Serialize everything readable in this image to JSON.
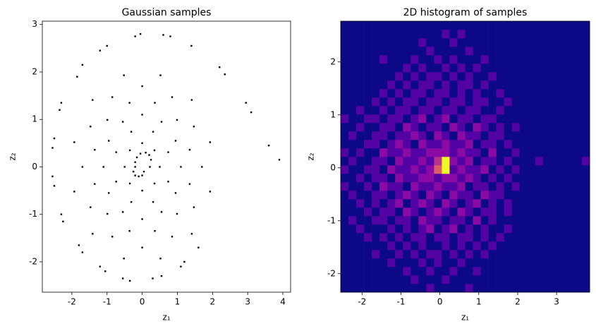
{
  "chart_data": [
    {
      "type": "scatter",
      "title": "Gaussian samples",
      "xlabel": "z₁",
      "ylabel": "z₂",
      "color": "#000000",
      "xlim": [
        -2.84,
        4.22
      ],
      "ylim": [
        -2.64,
        3.07
      ],
      "xticks": [
        -2,
        -1,
        0,
        1,
        2,
        3,
        4
      ],
      "yticks": [
        -2,
        -1,
        0,
        1,
        2,
        3
      ],
      "x": [
        3.9,
        3.6,
        3.1,
        2.95,
        2.35,
        2.2,
        1.4,
        0.6,
        0.8,
        -0.2,
        -0.05,
        -1,
        -1.2,
        -1.7,
        -1.85,
        -2.3,
        -2.35,
        -2.5,
        -2.55,
        -2.55,
        -2.5,
        -2.3,
        -2.25,
        -1.8,
        -1.7,
        -1.2,
        -1.05,
        -0.55,
        -0.35,
        0.3,
        0.55,
        1.1,
        1.2,
        1.6,
        -0.2,
        -0.2,
        -0.15,
        -0.05,
        0.1,
        0.2,
        0.25,
        0.22,
        -0.25,
        -0.2,
        -0.1,
        0,
        0.05,
        0.5,
        0.35,
        0,
        -0.35,
        -0.5,
        -0.35,
        0,
        0.35,
        0.74,
        0.31,
        -0.31,
        -0.74,
        -0.74,
        -0.31,
        0.31,
        0.74,
        1.1,
        0.95,
        0.55,
        0,
        -0.55,
        -0.95,
        -1.1,
        -0.95,
        -0.55,
        0,
        0.55,
        0.95,
        1.35,
        0.99,
        0.36,
        -0.36,
        -0.99,
        -1.35,
        -1.35,
        -0.99,
        -0.36,
        0.36,
        0.99,
        1.35,
        1.7,
        1.47,
        0.85,
        0,
        -0.85,
        -1.47,
        -1.7,
        -1.47,
        -0.85,
        0,
        0.85,
        1.47,
        1.93,
        1.41,
        0.52,
        -0.52,
        -1.41,
        -1.93,
        -1.93,
        -1.41,
        -0.52,
        0.52,
        1.41,
        1.93
      ],
      "y": [
        0.15,
        0.45,
        1.15,
        1.35,
        1.95,
        2.1,
        2.55,
        2.78,
        2.75,
        2.75,
        2.8,
        2.55,
        2.45,
        2.15,
        1.9,
        1.35,
        1.2,
        0.6,
        0.4,
        -0.2,
        -0.4,
        -1,
        -1.15,
        -1.65,
        -1.8,
        -2.1,
        -2.2,
        -2.35,
        -2.4,
        -2.35,
        -2.3,
        -2.1,
        -2.0,
        -1.7,
        0,
        0.1,
        0.2,
        0.28,
        0.3,
        0.25,
        0.15,
        0,
        -0.1,
        -0.18,
        -0.2,
        -0.18,
        -0.1,
        0,
        0.35,
        0.5,
        0.35,
        0,
        -0.35,
        -0.5,
        -0.35,
        0.31,
        0.74,
        0.74,
        0.31,
        -0.31,
        -0.74,
        -0.74,
        -0.31,
        0,
        0.55,
        0.95,
        1.1,
        0.95,
        0.55,
        0,
        -0.55,
        -0.95,
        -1.1,
        -0.95,
        -0.55,
        0.36,
        0.99,
        1.35,
        1.35,
        0.99,
        0.36,
        -0.36,
        -0.99,
        -1.35,
        -1.35,
        -0.99,
        -0.36,
        0,
        0.85,
        1.47,
        1.7,
        1.47,
        0.85,
        0,
        -0.85,
        -1.47,
        -1.7,
        -1.47,
        -0.85,
        0.52,
        1.41,
        1.93,
        1.93,
        1.41,
        0.52,
        -0.52,
        -1.41,
        -1.93,
        -1.93,
        -1.41,
        -0.52
      ]
    },
    {
      "type": "hist2d",
      "title": "2D histogram of samples",
      "xlabel": "z₁",
      "ylabel": "z₂",
      "xlim": [
        -2.55,
        3.85
      ],
      "ylim": [
        -2.35,
        2.77
      ],
      "xticks": [
        -2,
        -1,
        0,
        1,
        2,
        3
      ],
      "yticks": [
        -2,
        -1,
        0,
        1,
        2
      ],
      "colormap": [
        "#0d0887",
        "#5302a3",
        "#8b0aa5",
        "#b83289",
        "#db5c68",
        "#f48849",
        "#f0f921"
      ],
      "clim": [
        0,
        6
      ],
      "xbins": [
        -2.55,
        -2.35,
        -2.15,
        -1.95,
        -1.75,
        -1.55,
        -1.35,
        -1.15,
        -0.95,
        -0.75,
        -0.55,
        -0.35,
        -0.15,
        0.05,
        0.25,
        0.45,
        0.65,
        0.85,
        1.05,
        1.25,
        1.45,
        1.65,
        1.85,
        2.05,
        2.25,
        2.45,
        2.65,
        2.85,
        3.05,
        3.25,
        3.45,
        3.65,
        3.85
      ],
      "ybins": [
        -2.35,
        -2.19,
        -2.03,
        -1.87,
        -1.71,
        -1.55,
        -1.39,
        -1.23,
        -1.07,
        -0.91,
        -0.75,
        -0.59,
        -0.43,
        -0.27,
        -0.11,
        0.05,
        0.21,
        0.37,
        0.53,
        0.69,
        0.85,
        1.01,
        1.17,
        1.33,
        1.49,
        1.65,
        1.81,
        1.97,
        2.13,
        2.29,
        2.45,
        2.61,
        2.77
      ],
      "counts": [
        [
          0,
          0,
          0,
          0,
          0,
          0,
          0,
          0,
          0,
          0,
          0,
          1,
          0,
          0,
          0,
          0,
          1,
          0,
          0,
          0,
          0,
          0,
          0,
          0,
          0,
          0,
          0,
          0,
          0,
          0,
          0,
          0
        ],
        [
          0,
          0,
          0,
          0,
          0,
          0,
          0,
          0,
          0,
          1,
          0,
          0,
          0,
          1,
          0,
          0,
          0,
          0,
          0,
          0,
          0,
          0,
          0,
          0,
          0,
          0,
          0,
          0,
          0,
          0,
          0,
          0
        ],
        [
          0,
          0,
          0,
          0,
          0,
          0,
          0,
          0,
          1,
          0,
          0,
          1,
          0,
          0,
          1,
          0,
          0,
          1,
          0,
          0,
          0,
          0,
          0,
          0,
          0,
          0,
          0,
          0,
          0,
          0,
          0,
          0
        ],
        [
          0,
          0,
          0,
          0,
          0,
          0,
          1,
          0,
          0,
          0,
          1,
          0,
          1,
          0,
          0,
          1,
          0,
          0,
          0,
          0,
          0,
          0,
          0,
          0,
          0,
          0,
          0,
          0,
          0,
          0,
          0,
          0
        ],
        [
          0,
          0,
          0,
          0,
          1,
          0,
          0,
          1,
          0,
          1,
          0,
          1,
          1,
          0,
          1,
          0,
          1,
          0,
          1,
          0,
          0,
          0,
          0,
          0,
          0,
          0,
          0,
          0,
          0,
          0,
          0,
          0
        ],
        [
          0,
          0,
          0,
          0,
          0,
          0,
          1,
          0,
          1,
          0,
          1,
          0,
          0,
          1,
          0,
          1,
          0,
          1,
          0,
          1,
          0,
          0,
          0,
          0,
          0,
          0,
          0,
          0,
          0,
          0,
          0,
          0
        ],
        [
          0,
          0,
          0,
          1,
          0,
          1,
          0,
          1,
          0,
          1,
          1,
          0,
          1,
          1,
          0,
          1,
          1,
          0,
          1,
          0,
          1,
          0,
          0,
          0,
          0,
          0,
          0,
          0,
          0,
          0,
          0,
          0
        ],
        [
          0,
          0,
          1,
          0,
          0,
          0,
          1,
          0,
          1,
          0,
          1,
          2,
          0,
          1,
          2,
          0,
          1,
          0,
          1,
          0,
          0,
          1,
          0,
          0,
          0,
          0,
          0,
          0,
          0,
          0,
          0,
          0
        ],
        [
          0,
          1,
          0,
          0,
          1,
          1,
          0,
          1,
          1,
          0,
          2,
          1,
          1,
          0,
          1,
          1,
          0,
          2,
          0,
          1,
          0,
          0,
          0,
          0,
          0,
          0,
          0,
          0,
          0,
          0,
          0,
          0
        ],
        [
          0,
          0,
          0,
          1,
          0,
          1,
          1,
          0,
          2,
          1,
          0,
          1,
          2,
          1,
          0,
          2,
          1,
          0,
          1,
          1,
          0,
          1,
          0,
          0,
          0,
          0,
          0,
          0,
          0,
          0,
          0,
          0
        ],
        [
          0,
          0,
          1,
          0,
          1,
          0,
          1,
          2,
          0,
          1,
          2,
          1,
          0,
          2,
          1,
          0,
          1,
          2,
          0,
          1,
          0,
          1,
          0,
          0,
          0,
          0,
          0,
          0,
          0,
          0,
          0,
          0
        ],
        [
          0,
          1,
          0,
          0,
          1,
          1,
          0,
          1,
          2,
          1,
          0,
          2,
          1,
          0,
          2,
          1,
          1,
          0,
          2,
          1,
          1,
          0,
          0,
          0,
          0,
          0,
          0,
          0,
          0,
          0,
          0,
          0
        ],
        [
          1,
          0,
          0,
          1,
          0,
          2,
          1,
          1,
          0,
          2,
          1,
          1,
          2,
          1,
          1,
          2,
          0,
          1,
          1,
          0,
          1,
          0,
          1,
          0,
          0,
          0,
          0,
          0,
          0,
          0,
          0,
          0
        ],
        [
          0,
          0,
          1,
          0,
          1,
          1,
          0,
          2,
          1,
          1,
          2,
          2,
          1,
          2,
          2,
          1,
          2,
          1,
          0,
          1,
          0,
          1,
          0,
          0,
          0,
          0,
          0,
          0,
          0,
          0,
          0,
          0
        ],
        [
          1,
          0,
          0,
          1,
          1,
          0,
          2,
          1,
          1,
          2,
          1,
          2,
          4,
          6,
          1,
          2,
          1,
          1,
          2,
          0,
          1,
          0,
          1,
          0,
          0,
          0,
          0,
          0,
          0,
          0,
          0,
          0
        ],
        [
          0,
          1,
          0,
          0,
          1,
          1,
          0,
          2,
          1,
          1,
          2,
          1,
          3,
          6,
          2,
          1,
          2,
          0,
          1,
          1,
          0,
          1,
          0,
          0,
          0,
          1,
          0,
          0,
          0,
          0,
          0,
          1
        ],
        [
          1,
          0,
          1,
          0,
          0,
          2,
          1,
          1,
          2,
          1,
          1,
          2,
          2,
          2,
          1,
          2,
          1,
          1,
          0,
          2,
          0,
          0,
          1,
          0,
          0,
          0,
          0,
          0,
          0,
          0,
          0,
          0
        ],
        [
          0,
          0,
          0,
          1,
          1,
          0,
          1,
          2,
          1,
          0,
          2,
          1,
          1,
          2,
          1,
          1,
          2,
          0,
          1,
          1,
          0,
          1,
          0,
          0,
          0,
          0,
          0,
          0,
          0,
          0,
          0,
          0
        ],
        [
          0,
          1,
          0,
          0,
          1,
          1,
          0,
          1,
          1,
          2,
          1,
          0,
          2,
          1,
          0,
          2,
          1,
          1,
          0,
          1,
          1,
          0,
          0,
          0,
          0,
          0,
          0,
          0,
          0,
          0,
          0,
          0
        ],
        [
          0,
          0,
          1,
          0,
          0,
          1,
          1,
          0,
          2,
          1,
          0,
          1,
          1,
          0,
          2,
          1,
          0,
          2,
          1,
          0,
          1,
          0,
          1,
          0,
          0,
          0,
          0,
          0,
          0,
          0,
          0,
          0
        ],
        [
          1,
          0,
          0,
          1,
          1,
          0,
          1,
          1,
          0,
          1,
          2,
          0,
          1,
          2,
          0,
          1,
          1,
          0,
          1,
          1,
          0,
          0,
          0,
          0,
          0,
          0,
          0,
          0,
          0,
          0,
          0,
          0
        ],
        [
          0,
          0,
          1,
          0,
          0,
          1,
          0,
          1,
          1,
          0,
          1,
          1,
          0,
          1,
          1,
          0,
          1,
          1,
          0,
          0,
          1,
          0,
          0,
          0,
          0,
          0,
          0,
          0,
          0,
          0,
          0,
          0
        ],
        [
          0,
          0,
          0,
          0,
          1,
          0,
          1,
          0,
          1,
          1,
          0,
          1,
          1,
          0,
          1,
          1,
          0,
          1,
          1,
          0,
          0,
          1,
          0,
          0,
          0,
          0,
          0,
          0,
          0,
          0,
          0,
          0
        ],
        [
          0,
          0,
          0,
          0,
          0,
          1,
          0,
          1,
          0,
          1,
          1,
          0,
          1,
          1,
          0,
          1,
          0,
          1,
          0,
          0,
          1,
          0,
          0,
          0,
          0,
          0,
          0,
          0,
          0,
          0,
          0,
          0
        ],
        [
          0,
          0,
          0,
          0,
          0,
          0,
          1,
          0,
          1,
          0,
          1,
          1,
          0,
          1,
          0,
          1,
          1,
          0,
          1,
          0,
          0,
          0,
          0,
          0,
          0,
          0,
          0,
          0,
          0,
          0,
          0,
          0
        ],
        [
          0,
          0,
          0,
          0,
          0,
          0,
          0,
          1,
          0,
          1,
          0,
          1,
          1,
          0,
          1,
          0,
          1,
          0,
          0,
          1,
          0,
          0,
          0,
          0,
          0,
          0,
          0,
          0,
          0,
          0,
          0,
          0
        ],
        [
          0,
          0,
          0,
          0,
          0,
          0,
          0,
          0,
          1,
          0,
          1,
          0,
          0,
          1,
          0,
          1,
          0,
          1,
          0,
          0,
          0,
          0,
          0,
          0,
          0,
          0,
          0,
          0,
          0,
          0,
          0,
          0
        ],
        [
          0,
          0,
          0,
          0,
          0,
          1,
          0,
          0,
          0,
          1,
          0,
          0,
          1,
          0,
          1,
          0,
          0,
          0,
          1,
          0,
          0,
          0,
          0,
          0,
          0,
          0,
          0,
          0,
          0,
          0,
          0,
          0
        ],
        [
          0,
          0,
          0,
          0,
          0,
          0,
          0,
          0,
          0,
          0,
          0,
          1,
          0,
          0,
          0,
          0,
          1,
          0,
          0,
          0,
          0,
          0,
          0,
          0,
          0,
          0,
          0,
          0,
          0,
          0,
          0,
          0
        ],
        [
          0,
          0,
          0,
          0,
          0,
          0,
          0,
          0,
          0,
          0,
          1,
          0,
          0,
          0,
          1,
          0,
          0,
          0,
          0,
          0,
          0,
          0,
          0,
          0,
          0,
          0,
          0,
          0,
          0,
          0,
          0,
          0
        ],
        [
          0,
          0,
          0,
          0,
          0,
          0,
          0,
          0,
          0,
          0,
          0,
          0,
          0,
          1,
          0,
          1,
          0,
          0,
          0,
          0,
          0,
          0,
          0,
          0,
          0,
          0,
          0,
          0,
          0,
          0,
          0,
          0
        ],
        [
          0,
          0,
          0,
          0,
          0,
          0,
          0,
          0,
          0,
          0,
          0,
          0,
          0,
          0,
          0,
          0,
          0,
          0,
          0,
          0,
          0,
          0,
          0,
          0,
          0,
          0,
          0,
          0,
          0,
          0,
          0,
          0
        ]
      ]
    }
  ]
}
